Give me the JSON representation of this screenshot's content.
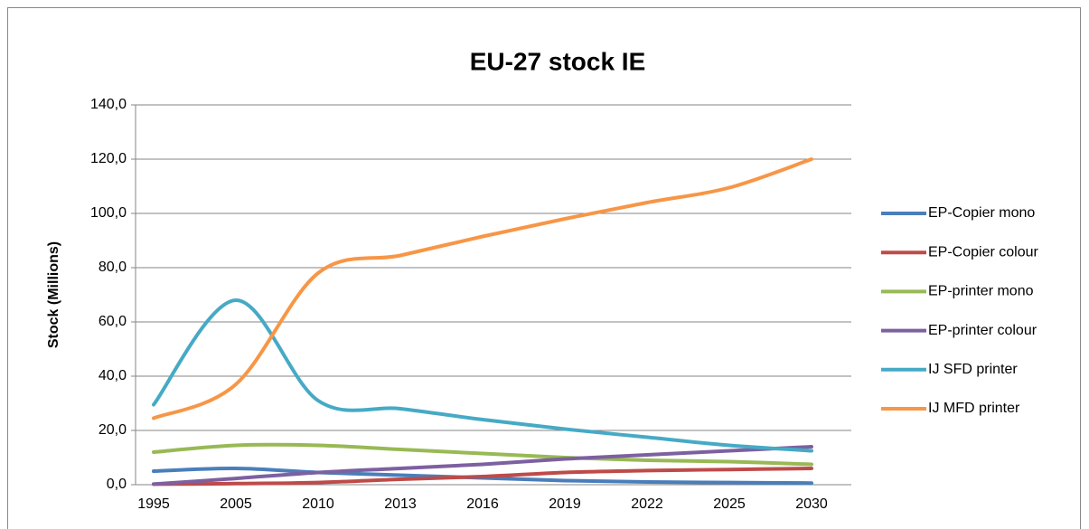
{
  "chart_data": {
    "type": "line",
    "title": "EU-27 stock IE",
    "ylabel": "Stock (Millions)",
    "categories": [
      "1995",
      "2005",
      "2010",
      "2013",
      "2016",
      "2019",
      "2022",
      "2025",
      "2030"
    ],
    "series": [
      {
        "name": "EP-Copier mono",
        "color": "#4a7ebb",
        "values": [
          5,
          6,
          4.5,
          3.5,
          2.5,
          1.5,
          1,
          0.8,
          0.6
        ]
      },
      {
        "name": "EP-Copier colour",
        "color": "#be4b48",
        "values": [
          0.2,
          0.4,
          0.8,
          2,
          3,
          4.5,
          5.2,
          5.6,
          6
        ]
      },
      {
        "name": "EP-printer mono",
        "color": "#98b954",
        "values": [
          12,
          14.5,
          14.5,
          13,
          11.5,
          10,
          9,
          8.5,
          7.5
        ]
      },
      {
        "name": "EP-printer colour",
        "color": "#7d60a0",
        "values": [
          0.2,
          2.3,
          4.5,
          6,
          7.5,
          9.5,
          11,
          12.5,
          14
        ]
      },
      {
        "name": "IJ SFD printer",
        "color": "#46aac5",
        "values": [
          29.5,
          68,
          31,
          28,
          24,
          20.5,
          17.5,
          14.5,
          12.5
        ]
      },
      {
        "name": "IJ MFD printer",
        "color": "#f79646",
        "values": [
          24.5,
          37,
          78,
          84.5,
          91.5,
          98,
          104,
          109.5,
          120
        ]
      }
    ],
    "ylim": [
      0,
      140
    ],
    "yticks": [
      {
        "value": 0,
        "label": "0,0"
      },
      {
        "value": 20,
        "label": "20,0"
      },
      {
        "value": 40,
        "label": "40,0"
      },
      {
        "value": 60,
        "label": "60,0"
      },
      {
        "value": 80,
        "label": "80,0"
      },
      {
        "value": 100,
        "label": "100,0"
      },
      {
        "value": 120,
        "label": "120,0"
      },
      {
        "value": 140,
        "label": "140,0"
      }
    ],
    "grid": true,
    "legend": "right"
  }
}
